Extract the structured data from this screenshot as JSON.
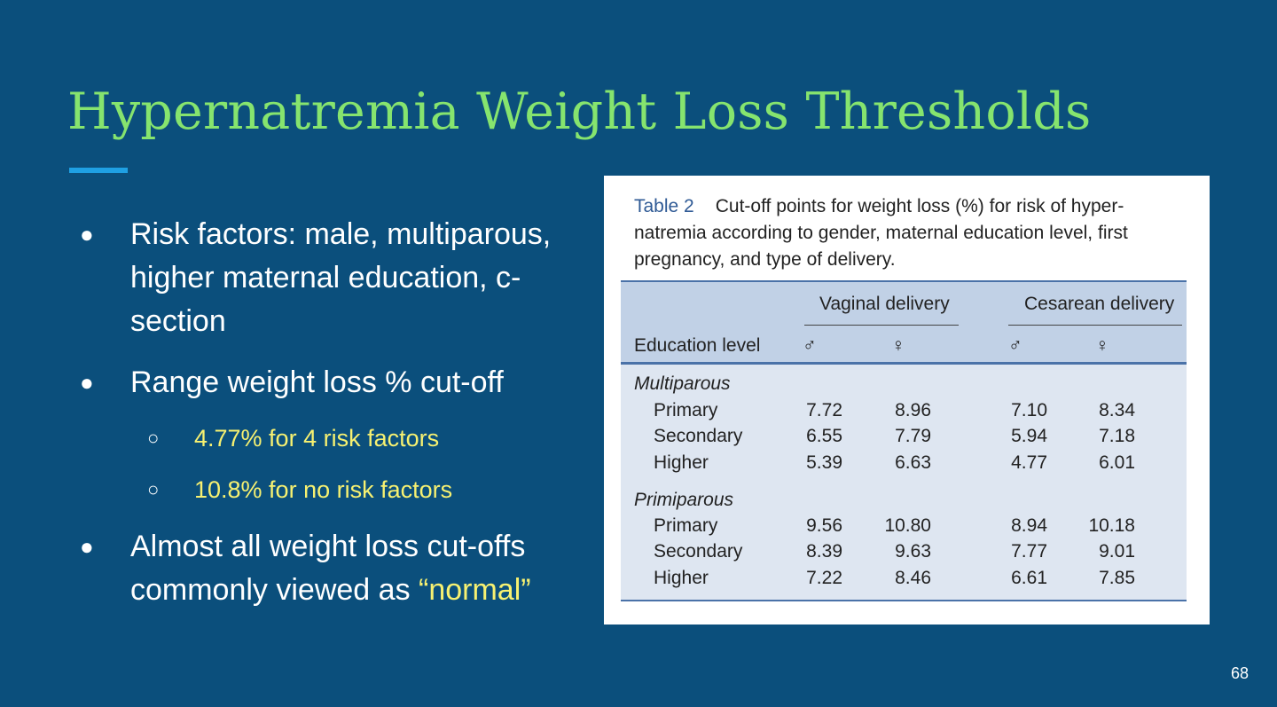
{
  "slide": {
    "title": "Hypernatremia Weight Loss Thresholds",
    "page_number": "68",
    "colors": {
      "background": "#0b4f7c",
      "title": "#86e46e",
      "accent_rule": "#1fa0e3",
      "highlight": "#f7f171"
    }
  },
  "bullets": {
    "b1": "Risk factors: male, multiparous, higher maternal education, c-section",
    "b2": "Range weight loss % cut-off",
    "b2_sub1": "4.77% for 4 risk factors",
    "b2_sub2": "10.8% for no risk factors",
    "b3_text": "Almost all weight loss cut-offs commonly viewed as ",
    "b3_highlight": "“normal”",
    "bullet_glyph": "●",
    "sub_bullet_glyph": "○"
  },
  "table": {
    "label": "Table 2",
    "caption_line1": "Cut-off points for weight loss (%) for risk of hyper-",
    "caption_line2": "natremia according to gender, maternal education level, first",
    "caption_line3": "pregnancy, and type of delivery.",
    "group_vaginal": "Vaginal delivery",
    "group_cesarean": "Cesarean delivery",
    "row_header": "Education level",
    "male_symbol": "♂",
    "female_symbol": "♀",
    "sections": [
      {
        "name": "Multiparous",
        "rows": [
          {
            "level": "Primary",
            "vag_m": "7.72",
            "vag_f": "8.96",
            "ces_m": "7.10",
            "ces_f": "8.34"
          },
          {
            "level": "Secondary",
            "vag_m": "6.55",
            "vag_f": "7.79",
            "ces_m": "5.94",
            "ces_f": "7.18"
          },
          {
            "level": "Higher",
            "vag_m": "5.39",
            "vag_f": "6.63",
            "ces_m": "4.77",
            "ces_f": "6.01"
          }
        ]
      },
      {
        "name": "Primiparous",
        "rows": [
          {
            "level": "Primary",
            "vag_m": "9.56",
            "vag_f": "10.80",
            "ces_m": "8.94",
            "ces_f": "10.18"
          },
          {
            "level": "Secondary",
            "vag_m": "8.39",
            "vag_f": "9.63",
            "ces_m": "7.77",
            "ces_f": "9.01"
          },
          {
            "level": "Higher",
            "vag_m": "7.22",
            "vag_f": "8.46",
            "ces_m": "6.61",
            "ces_f": "7.85"
          }
        ]
      }
    ]
  }
}
